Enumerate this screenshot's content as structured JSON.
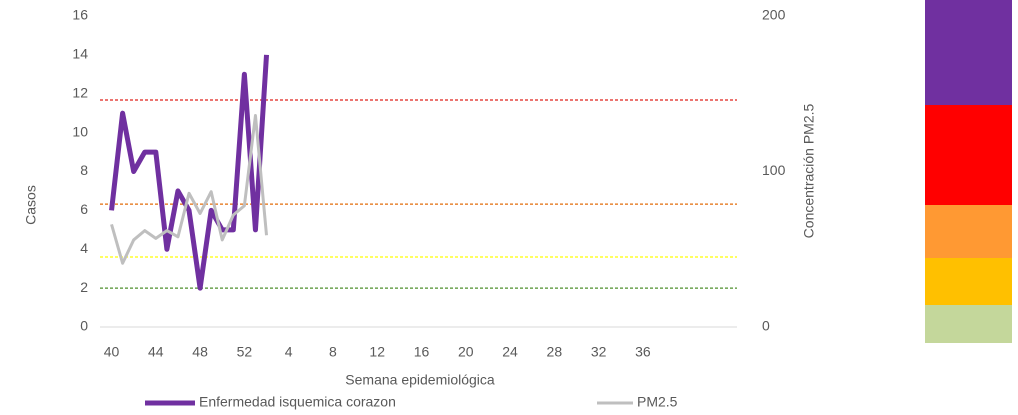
{
  "chart_data": {
    "type": "line",
    "y_label": "Casos",
    "y2_label": "Concentración PM2.5",
    "x_label": "Semana epidemiológica",
    "categories": [
      "40",
      null,
      null,
      null,
      "44",
      null,
      null,
      null,
      "48",
      null,
      null,
      null,
      "52",
      null,
      null,
      null,
      "4",
      null,
      null,
      null,
      "8",
      null,
      null,
      null,
      "12",
      null,
      null,
      null,
      "16",
      null,
      null,
      null,
      "20",
      null,
      null,
      null,
      "24",
      null,
      null,
      null,
      "28",
      null,
      null,
      null,
      "32",
      null,
      null,
      null,
      "36",
      null,
      null,
      null,
      null,
      null,
      null,
      null,
      null
    ],
    "series": [
      {
        "name": "Enfermedad isquemica corazon",
        "color": "#7030a0",
        "axis": "y",
        "values": [
          6,
          11,
          8,
          9,
          9,
          4,
          7,
          6,
          2,
          6,
          5,
          5,
          13,
          5,
          14,
          null,
          null,
          null,
          null,
          null,
          null,
          null,
          null,
          null,
          null,
          null,
          null,
          null,
          null,
          null,
          null,
          null,
          null,
          null,
          null,
          null,
          null,
          null,
          null,
          null,
          null,
          null,
          null,
          null,
          null,
          null,
          null,
          null,
          null,
          null,
          null,
          null,
          null,
          null,
          null,
          null,
          null
        ]
      },
      {
        "name": "PM2.5",
        "color": "#bfbfbf",
        "axis": "y2",
        "values": [
          66,
          41,
          56,
          62,
          57,
          62,
          58,
          86,
          73,
          87,
          56,
          72,
          78,
          136,
          59,
          null,
          null,
          null,
          null,
          null,
          null,
          null,
          null,
          null,
          null,
          null,
          null,
          null,
          null,
          null,
          null,
          null,
          null,
          null,
          null,
          null,
          null,
          null,
          null,
          null,
          null,
          null,
          null,
          null,
          null,
          null,
          null,
          null,
          null,
          null,
          null,
          null,
          null,
          null,
          null,
          null,
          null
        ]
      }
    ],
    "ylim": [
      0,
      16
    ],
    "yticks": [
      0,
      2,
      4,
      6,
      8,
      10,
      12,
      14,
      16
    ],
    "y2lim": [
      0,
      200
    ],
    "y2ticks": [
      0,
      100,
      200
    ],
    "reference_lines": [
      {
        "value": 146,
        "color": "#e0201b"
      },
      {
        "value": 79,
        "color": "#e36c0a"
      },
      {
        "value": 45,
        "color": "#ffff00"
      },
      {
        "value": 25,
        "color": "#4e8f2c"
      }
    ],
    "legend": "bottom"
  }
}
